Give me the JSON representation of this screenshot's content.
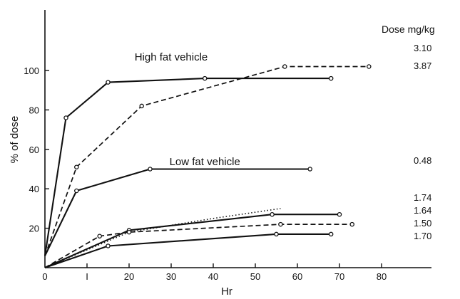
{
  "chart_data": {
    "type": "line",
    "title": "",
    "xlabel": "Hr",
    "ylabel": "% of dose",
    "xlim": [
      0,
      90
    ],
    "ylim": [
      0,
      120
    ],
    "x_ticks": [
      {
        "value": 0,
        "label": "0"
      },
      {
        "value": 10,
        "label": "I"
      },
      {
        "value": 20,
        "label": "20"
      },
      {
        "value": 30,
        "label": "30"
      },
      {
        "value": 40,
        "label": "40"
      },
      {
        "value": 50,
        "label": "50"
      },
      {
        "value": 60,
        "label": "60"
      },
      {
        "value": 70,
        "label": "70"
      },
      {
        "value": 80,
        "label": "80"
      }
    ],
    "y_ticks": [
      {
        "value": 20,
        "label": "20"
      },
      {
        "value": 40,
        "label": "40"
      },
      {
        "value": 60,
        "label": "60"
      },
      {
        "value": 80,
        "label": "80"
      },
      {
        "value": 100,
        "label": "100"
      }
    ],
    "grid": false,
    "legend_title": "Dose mg/kg",
    "annotations": [
      {
        "text": "High fat vehicle",
        "x": 30,
        "y": 105
      },
      {
        "text": "Low fat vehicle",
        "x": 38,
        "y": 52
      }
    ],
    "series": [
      {
        "dose": "3.10",
        "style": "dashed",
        "markers": true,
        "points": [
          [
            0,
            6
          ],
          [
            7.5,
            51
          ],
          [
            23,
            82
          ],
          [
            57,
            102
          ],
          [
            77,
            102
          ]
        ]
      },
      {
        "dose": "3.87",
        "style": "solid",
        "markers": true,
        "points": [
          [
            0,
            6
          ],
          [
            5,
            76
          ],
          [
            15,
            94
          ],
          [
            38,
            96
          ],
          [
            68,
            96
          ]
        ]
      },
      {
        "dose": "0.48",
        "style": "solid",
        "markers": true,
        "points": [
          [
            0,
            6
          ],
          [
            7.5,
            39
          ],
          [
            25,
            50
          ],
          [
            63,
            50
          ]
        ]
      },
      {
        "dose": "1.74",
        "style": "dotted",
        "markers": false,
        "points": [
          [
            0,
            0
          ],
          [
            20,
            18
          ],
          [
            40,
            25
          ],
          [
            56,
            30
          ]
        ]
      },
      {
        "dose": "1.64",
        "style": "solid",
        "markers": true,
        "points": [
          [
            0,
            0
          ],
          [
            20,
            19
          ],
          [
            54,
            27
          ],
          [
            70,
            27
          ]
        ]
      },
      {
        "dose": "1.50",
        "style": "dashed",
        "markers": true,
        "points": [
          [
            0,
            0
          ],
          [
            13,
            16
          ],
          [
            20,
            18
          ],
          [
            56,
            22
          ],
          [
            73,
            22
          ]
        ]
      },
      {
        "dose": "1.70",
        "style": "solid",
        "markers": true,
        "points": [
          [
            0,
            0
          ],
          [
            15,
            11
          ],
          [
            55,
            17
          ],
          [
            68,
            17
          ]
        ]
      }
    ],
    "dose_label_y": [
      102,
      96,
      50,
      30,
      27,
      22,
      17
    ]
  }
}
